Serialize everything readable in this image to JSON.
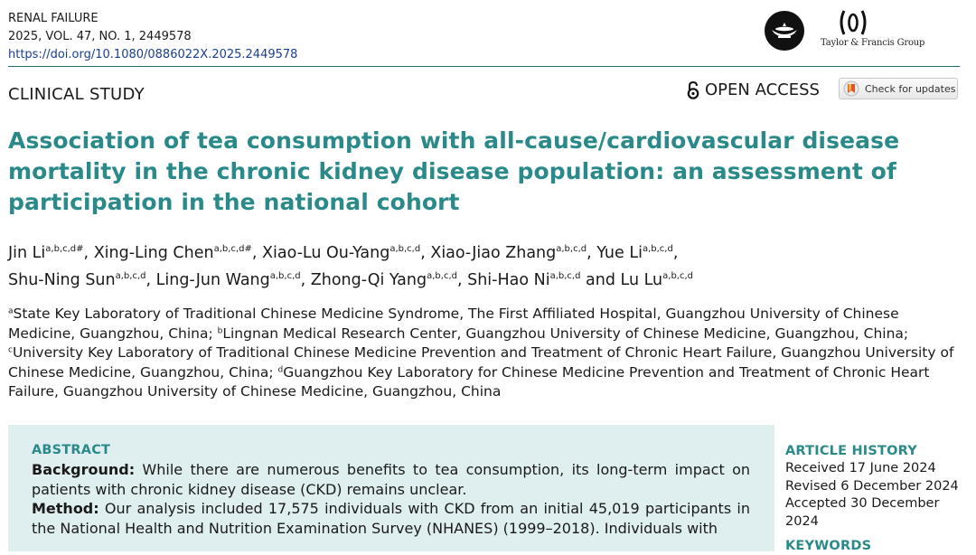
{
  "journal": {
    "name": "RENAL FAILURE",
    "citation": "2025, VOL. 47, NO. 1, 2449578",
    "doi": "https://doi.org/10.1080/0886022X.2025.2449578"
  },
  "publisher": {
    "name": "Taylor & Francis Group",
    "logo_icon": "lamp-icon"
  },
  "header": {
    "study_type": "CLINICAL STUDY",
    "open_access": "OPEN ACCESS",
    "check_updates": "Check for updates"
  },
  "title": "Association of tea consumption with all-cause/cardiovascular disease mortality in the chronic kidney disease population: an assessment of participation in the national cohort",
  "authors": [
    {
      "name": "Jin Li",
      "sup": "a,b,c,d#",
      "sep": ", "
    },
    {
      "name": "Xing-Ling Chen",
      "sup": "a,b,c,d#",
      "sep": ", "
    },
    {
      "name": "Xiao-Lu Ou-Yang",
      "sup": "a,b,c,d",
      "sep": ", "
    },
    {
      "name": "Xiao-Jiao Zhang",
      "sup": "a,b,c,d",
      "sep": ", "
    },
    {
      "name": "Yue Li",
      "sup": "a,b,c,d",
      "sep": ","
    },
    {
      "name": "Shu-Ning Sun",
      "sup": "a,b,c,d",
      "sep": ", "
    },
    {
      "name": "Ling-Jun Wang",
      "sup": "a,b,c,d",
      "sep": ", "
    },
    {
      "name": "Zhong-Qi Yang",
      "sup": "a,b,c,d",
      "sep": ", "
    },
    {
      "name": "Shi-Hao Ni",
      "sup": "a,b,c,d",
      "sep": " and "
    },
    {
      "name": "Lu Lu",
      "sup": "a,b,c,d",
      "sep": ""
    }
  ],
  "affiliations": [
    {
      "sup": "a",
      "text": "State Key Laboratory of Traditional Chinese Medicine Syndrome, The First Affiliated Hospital, Guangzhou University of Chinese Medicine, Guangzhou, China; "
    },
    {
      "sup": "b",
      "text": "Lingnan Medical Research Center, Guangzhou University of Chinese Medicine, Guangzhou, China; "
    },
    {
      "sup": "c",
      "text": "University Key Laboratory of Traditional Chinese Medicine Prevention and Treatment of Chronic Heart Failure, Guangzhou University of Chinese Medicine, Guangzhou, China; "
    },
    {
      "sup": "d",
      "text": "Guangzhou Key Laboratory for Chinese Medicine Prevention and Treatment of Chronic Heart Failure, Guangzhou University of Chinese Medicine, Guangzhou, China"
    }
  ],
  "abstract": {
    "heading": "ABSTRACT",
    "background_label": "Background:",
    "background_text": " While there are numerous benefits to tea consumption, its long-term impact on patients with chronic kidney disease (CKD) remains unclear.",
    "method_label": "Method:",
    "method_text": " Our analysis included 17,575 individuals with CKD from an initial 45,019 participants in the National Health and Nutrition Examination Survey (NHANES) (1999–2018). Individuals with"
  },
  "article_history": {
    "heading": "ARTICLE HISTORY",
    "received": "Received 17 June 2024",
    "revised": "Revised 6 December 2024",
    "accepted": "Accepted 30 December 2024"
  },
  "keywords": {
    "heading": "KEYWORDS"
  }
}
